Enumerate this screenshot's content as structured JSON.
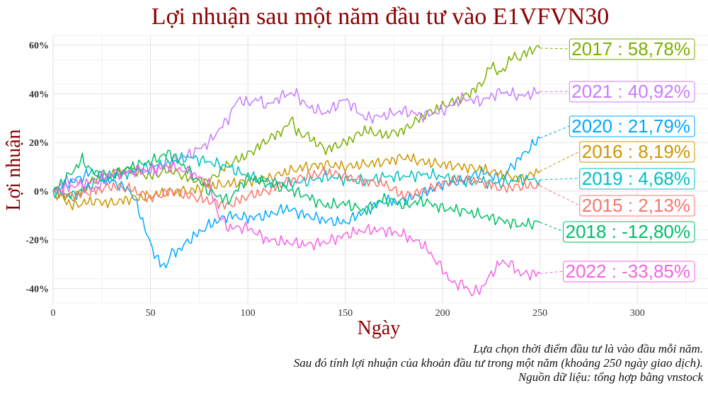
{
  "chart_data": {
    "type": "line",
    "title": "Lợi nhuận sau một năm đầu tư vào E1VFVN30",
    "xlabel": "Ngày",
    "ylabel": "Lợi nhuận",
    "xlim": [
      0,
      337
    ],
    "ylim": [
      -46,
      64
    ],
    "x_ticks": [
      0,
      50,
      100,
      150,
      200,
      250,
      300
    ],
    "y_ticks": [
      -40,
      -20,
      0,
      20,
      40,
      60
    ],
    "y_tick_labels": [
      "-40%",
      "-20%",
      "0%",
      "20%",
      "40%",
      "60%"
    ],
    "grid": true,
    "series": [
      {
        "name": "2017",
        "label": "2017 : 58,78%",
        "final": 58.78,
        "color": "#7cae00",
        "x": [
          0,
          10,
          20,
          30,
          40,
          50,
          60,
          70,
          80,
          90,
          100,
          110,
          120,
          122,
          125,
          130,
          140,
          150,
          160,
          170,
          180,
          190,
          200,
          210,
          220,
          225,
          230,
          235,
          240,
          245,
          250
        ],
        "y": [
          0,
          -3,
          4,
          7,
          9,
          6,
          9,
          5,
          4,
          11,
          15,
          21,
          26,
          31,
          24,
          23,
          17,
          20,
          25,
          23,
          25,
          31,
          35,
          38,
          44,
          52,
          48,
          55,
          55,
          58,
          58.78
        ]
      },
      {
        "name": "2021",
        "label": "2021 : 40,92%",
        "final": 40.92,
        "color": "#c77cff",
        "x": [
          0,
          5,
          10,
          20,
          30,
          40,
          50,
          60,
          70,
          80,
          90,
          95,
          100,
          105,
          110,
          115,
          120,
          125,
          130,
          140,
          150,
          160,
          170,
          180,
          190,
          200,
          210,
          220,
          230,
          240,
          250
        ],
        "y": [
          0,
          3,
          5,
          0,
          6,
          8,
          8,
          12,
          15,
          20,
          30,
          38,
          36,
          38,
          35,
          38,
          40,
          40,
          35,
          32,
          38,
          30,
          31,
          33,
          31,
          33,
          38,
          37,
          41,
          39,
          40.92
        ]
      },
      {
        "name": "2020",
        "label": "2020 : 21,79%",
        "final": 21.79,
        "color": "#00a9ff",
        "x": [
          0,
          10,
          20,
          30,
          40,
          45,
          50,
          55,
          58,
          60,
          65,
          70,
          80,
          90,
          100,
          110,
          120,
          130,
          140,
          150,
          160,
          170,
          180,
          190,
          200,
          210,
          220,
          230,
          240,
          250
        ],
        "y": [
          0,
          4,
          8,
          4,
          0,
          -10,
          -22,
          -30,
          -31,
          -26,
          -24,
          -20,
          -14,
          -10,
          -11,
          -10,
          -7,
          -10,
          -12,
          -13,
          -8,
          -4,
          -4,
          -1,
          3,
          4,
          8,
          5,
          14,
          21.79
        ]
      },
      {
        "name": "2016",
        "label": "2016 : 8,19%",
        "final": 8.19,
        "color": "#cd9600",
        "x": [
          0,
          10,
          20,
          30,
          40,
          50,
          60,
          70,
          80,
          90,
          100,
          110,
          120,
          130,
          140,
          150,
          160,
          170,
          180,
          190,
          200,
          210,
          220,
          230,
          240,
          250
        ],
        "y": [
          0,
          -6,
          -4,
          -5,
          -3,
          -2,
          0,
          0,
          2,
          3,
          4,
          5,
          8,
          10,
          11,
          10,
          11,
          12,
          14,
          12,
          11,
          10,
          9,
          7,
          5,
          8.19
        ]
      },
      {
        "name": "2019",
        "label": "2019 : 4,68%",
        "final": 4.68,
        "color": "#00bfc4",
        "x": [
          0,
          10,
          20,
          30,
          40,
          50,
          60,
          70,
          80,
          90,
          100,
          110,
          120,
          130,
          140,
          150,
          160,
          170,
          180,
          190,
          200,
          210,
          220,
          230,
          240,
          250
        ],
        "y": [
          0,
          -2,
          3,
          6,
          8,
          10,
          12,
          14,
          12,
          10,
          6,
          4,
          3,
          4,
          6,
          5,
          4,
          6,
          6,
          7,
          6,
          4,
          4,
          3,
          5,
          4.68
        ]
      },
      {
        "name": "2015",
        "label": "2015 : 2,13%",
        "final": 2.13,
        "color": "#f8766d",
        "x": [
          0,
          10,
          20,
          30,
          40,
          50,
          60,
          70,
          80,
          90,
          100,
          110,
          120,
          130,
          140,
          150,
          160,
          170,
          180,
          190,
          200,
          210,
          220,
          230,
          240,
          250
        ],
        "y": [
          0,
          -2,
          0,
          2,
          1,
          -3,
          0,
          -2,
          -4,
          -6,
          -2,
          0,
          4,
          6,
          8,
          6,
          4,
          3,
          -2,
          0,
          3,
          5,
          4,
          1,
          2,
          2.13
        ]
      },
      {
        "name": "2018",
        "label": "2018 : -12,80%",
        "final": -12.8,
        "color": "#00be67",
        "x": [
          0,
          10,
          15,
          20,
          30,
          40,
          50,
          60,
          70,
          80,
          90,
          100,
          110,
          120,
          130,
          140,
          150,
          160,
          170,
          180,
          190,
          200,
          210,
          220,
          230,
          240,
          250
        ],
        "y": [
          0,
          8,
          13,
          8,
          6,
          10,
          12,
          16,
          8,
          0,
          -4,
          6,
          3,
          1,
          -2,
          -6,
          -5,
          -8,
          -3,
          -6,
          -4,
          -7,
          -8,
          -10,
          -12,
          -14,
          -12.8
        ]
      },
      {
        "name": "2022",
        "label": "2022 : -33,85%",
        "final": -33.85,
        "color": "#f564e3",
        "x": [
          0,
          10,
          20,
          30,
          40,
          50,
          60,
          70,
          80,
          85,
          90,
          100,
          110,
          120,
          130,
          140,
          150,
          160,
          170,
          180,
          190,
          200,
          205,
          210,
          215,
          220,
          225,
          230,
          235,
          240,
          250
        ],
        "y": [
          0,
          2,
          4,
          7,
          8,
          9,
          10,
          8,
          3,
          -10,
          -15,
          -15,
          -20,
          -21,
          -22,
          -21,
          -18,
          -16,
          -16,
          -18,
          -22,
          -32,
          -38,
          -38,
          -42,
          -40,
          -34,
          -29,
          -30,
          -34,
          -33.85
        ]
      }
    ]
  },
  "caption": {
    "line1": "Lựa chọn thời điểm đầu tư là vào đầu mỗi năm.",
    "line2": "Sau đó tính lợi nhuận của khoản đầu tư trong một năm (khoảng 250 ngày giao dịch).",
    "line3": "Nguồn dữ liệu: tổng hợp bằng vnstock"
  }
}
